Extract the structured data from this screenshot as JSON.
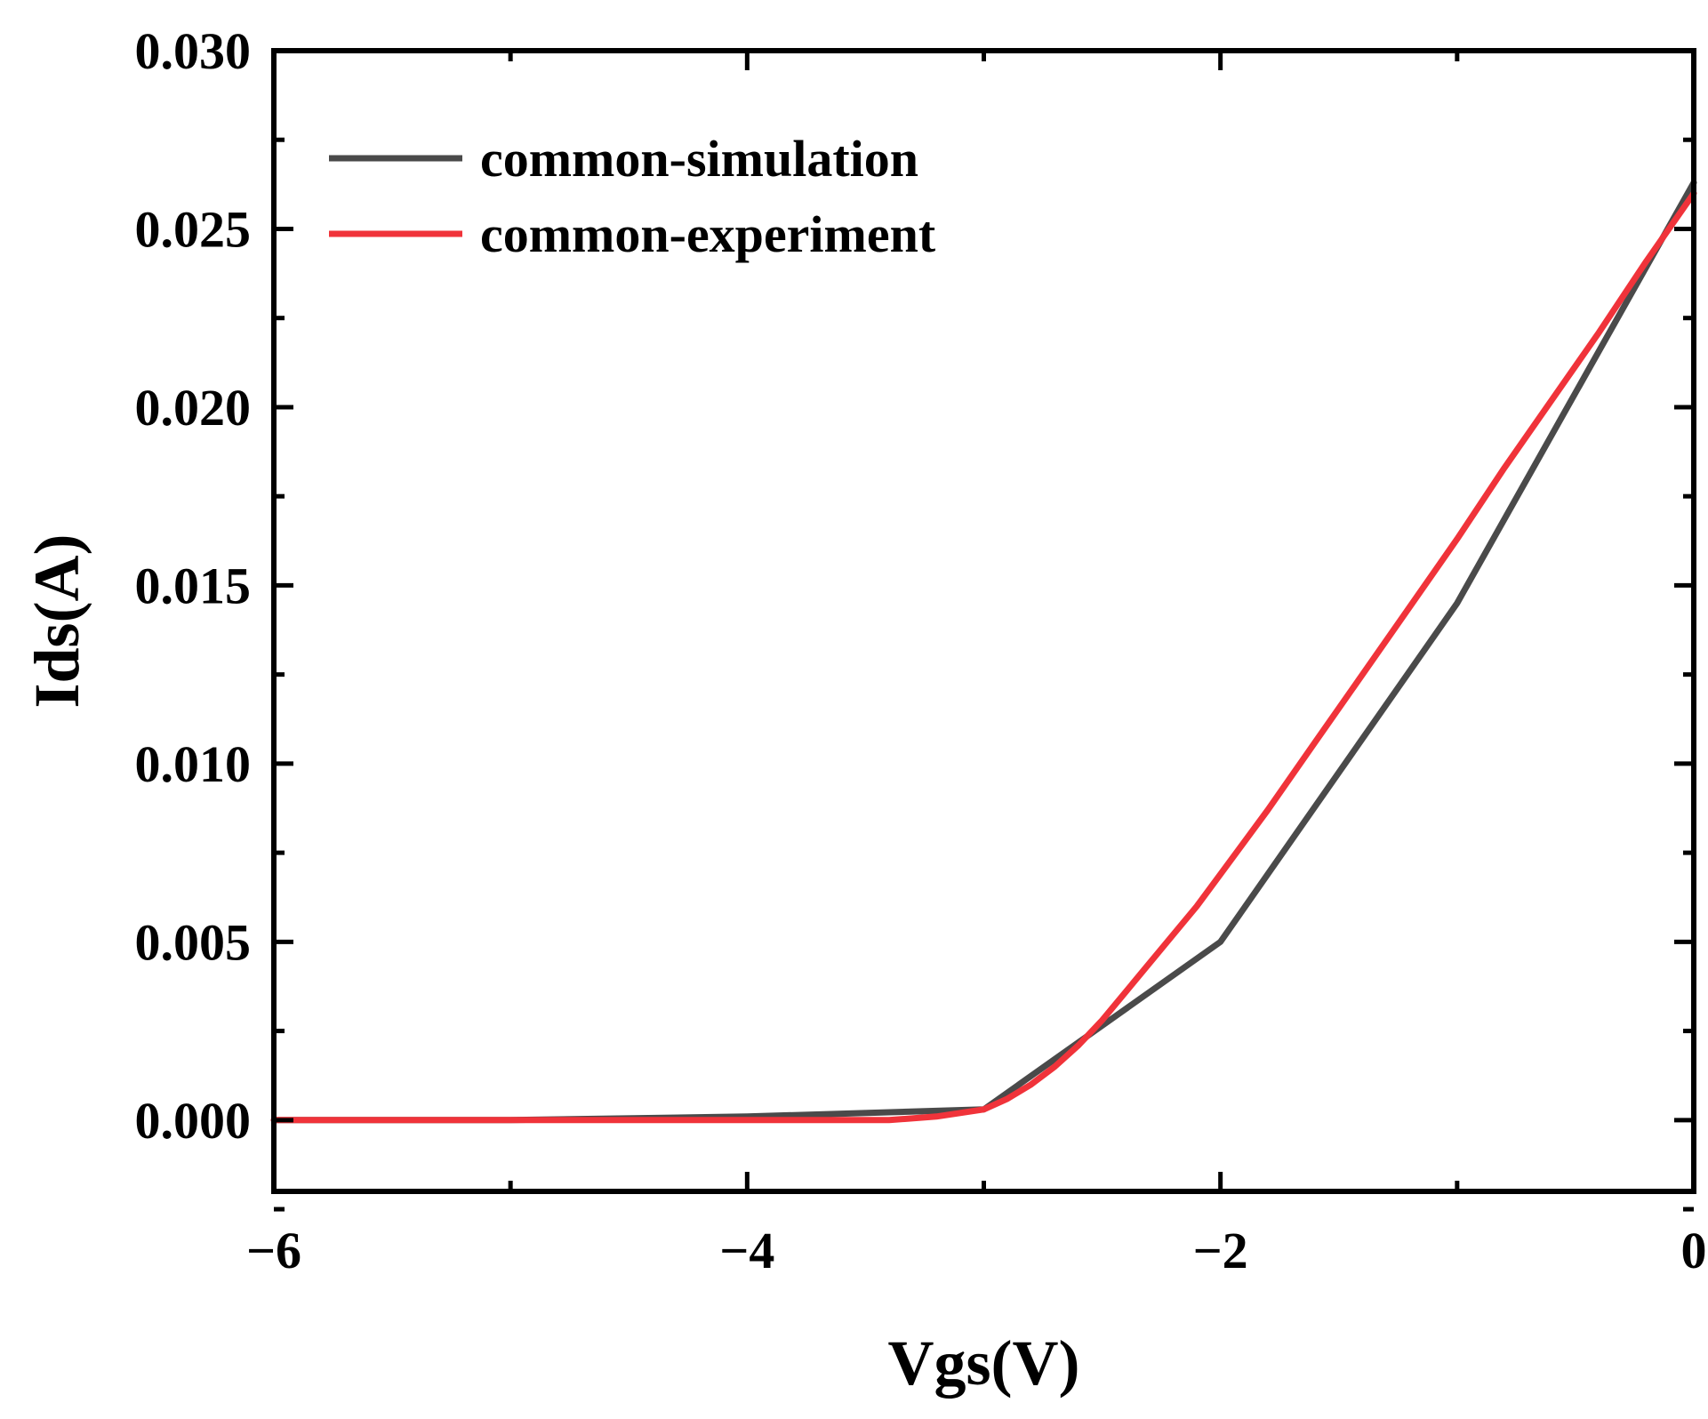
{
  "chart_data": {
    "type": "line",
    "title": "",
    "xlabel": "Vgs(V)",
    "ylabel": "Ids(A)",
    "xlim": [
      -6,
      0
    ],
    "ylim": [
      -0.002,
      0.03
    ],
    "xticks": [
      {
        "value": -6,
        "label": "−6"
      },
      {
        "value": -4,
        "label": "−4"
      },
      {
        "value": -2,
        "label": "−2"
      },
      {
        "value": 0,
        "label": "0"
      }
    ],
    "xminor": [
      -5,
      -3,
      -1
    ],
    "yticks": [
      {
        "value": 0.0,
        "label": "0.000"
      },
      {
        "value": 0.005,
        "label": "0.005"
      },
      {
        "value": 0.01,
        "label": "0.010"
      },
      {
        "value": 0.015,
        "label": "0.015"
      },
      {
        "value": 0.02,
        "label": "0.020"
      },
      {
        "value": 0.025,
        "label": "0.025"
      },
      {
        "value": 0.03,
        "label": "0.030"
      }
    ],
    "yminor": [
      -0.0025,
      0.0025,
      0.0075,
      0.0125,
      0.0175,
      0.0225,
      0.0275
    ],
    "grid": false,
    "legend_position": "top-left",
    "series": [
      {
        "name": "common-simulation",
        "color": "#4a4a4a",
        "x": [
          -6,
          -5,
          -4,
          -3,
          -2,
          -1,
          0
        ],
        "y": [
          0.0,
          0.0,
          0.0001,
          0.0003,
          0.005,
          0.0145,
          0.0263
        ]
      },
      {
        "name": "common-experiment",
        "color": "#f0333a",
        "x": [
          -6,
          -5,
          -4,
          -3.4,
          -3.2,
          -3.0,
          -2.9,
          -2.8,
          -2.7,
          -2.6,
          -2.5,
          -2.4,
          -2.3,
          -2.2,
          -2.1,
          -2.0,
          -1.8,
          -1.6,
          -1.4,
          -1.2,
          -1.0,
          -0.8,
          -0.6,
          -0.4,
          -0.2,
          0
        ],
        "y": [
          0.0,
          0.0,
          0.0,
          0.0,
          0.0001,
          0.0003,
          0.0006,
          0.001,
          0.0015,
          0.0021,
          0.0028,
          0.0036,
          0.0044,
          0.0052,
          0.006,
          0.0069,
          0.0087,
          0.0106,
          0.0125,
          0.0144,
          0.0163,
          0.0183,
          0.0202,
          0.0221,
          0.0241,
          0.026
        ]
      }
    ]
  }
}
